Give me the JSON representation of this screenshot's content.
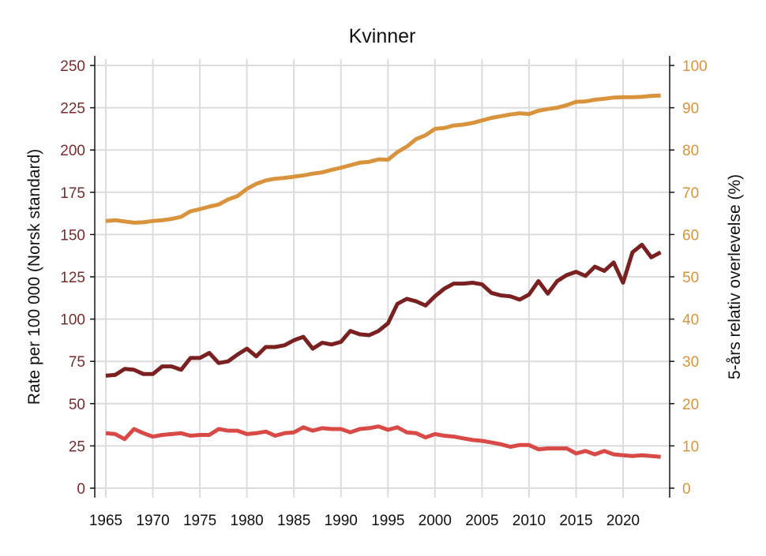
{
  "chart_data": {
    "type": "line",
    "title": "Kvinner",
    "ylabel": "Rate per 100 000 (Norsk standard)",
    "y2label": "5-års relativ overlevelse (%)",
    "xlim": [
      1965,
      2024
    ],
    "ylim": [
      0,
      250
    ],
    "y2lim": [
      0,
      100
    ],
    "grid": true,
    "xticks": [
      1965,
      1970,
      1975,
      1980,
      1985,
      1990,
      1995,
      2000,
      2005,
      2010,
      2015,
      2020
    ],
    "yticks": [
      0,
      25,
      50,
      75,
      100,
      125,
      150,
      175,
      200,
      225,
      250
    ],
    "y2ticks": [
      0,
      10,
      20,
      30,
      40,
      50,
      60,
      70,
      80,
      90,
      100
    ],
    "left_tick_color": "#7b2b2b",
    "right_tick_color": "#d9933d",
    "x": [
      1965,
      1966,
      1967,
      1968,
      1969,
      1970,
      1971,
      1972,
      1973,
      1974,
      1975,
      1976,
      1977,
      1978,
      1979,
      1980,
      1981,
      1982,
      1983,
      1984,
      1985,
      1986,
      1987,
      1988,
      1989,
      1990,
      1991,
      1992,
      1993,
      1994,
      1995,
      1996,
      1997,
      1998,
      1999,
      2000,
      2001,
      2002,
      2003,
      2004,
      2005,
      2006,
      2007,
      2008,
      2009,
      2010,
      2011,
      2012,
      2013,
      2014,
      2015,
      2016,
      2017,
      2018,
      2019,
      2020,
      2021,
      2022,
      2023,
      2024
    ],
    "series": [
      {
        "axis": "right",
        "color": "#d9933d",
        "values": [
          63.2,
          63.4,
          63.1,
          62.8,
          62.9,
          63.2,
          63.4,
          63.7,
          64.2,
          65.5,
          66.0,
          66.6,
          67.1,
          68.3,
          69.1,
          70.8,
          72.0,
          72.8,
          73.2,
          73.4,
          73.7,
          74.0,
          74.4,
          74.7,
          75.3,
          75.8,
          76.4,
          77.0,
          77.2,
          77.8,
          77.7,
          79.5,
          80.8,
          82.6,
          83.5,
          85.0,
          85.2,
          85.8,
          86.0,
          86.4,
          87.0,
          87.6,
          88.0,
          88.4,
          88.7,
          88.5,
          89.3,
          89.7,
          90.0,
          90.6,
          91.4,
          91.5,
          91.9,
          92.1,
          92.4,
          92.5,
          92.5,
          92.6,
          92.8,
          92.9
        ]
      },
      {
        "axis": "left",
        "color": "#7b2020",
        "values": [
          66.5,
          67,
          70.5,
          70,
          67.5,
          67.5,
          72,
          72,
          70,
          77,
          77,
          80,
          74,
          75,
          79,
          82.5,
          78,
          83.5,
          83.5,
          84.5,
          87.5,
          89.5,
          82.5,
          86,
          85,
          86.5,
          93,
          91,
          90.5,
          93,
          97.5,
          109,
          112,
          110.5,
          108,
          113.5,
          118,
          121,
          121,
          121.5,
          120.5,
          115.5,
          114,
          113.5,
          111.5,
          114.5,
          122.5,
          115,
          122.5,
          126,
          128,
          125.5,
          131,
          128.5,
          133.5,
          121.5,
          139.5,
          144,
          136.5,
          139.5
        ]
      },
      {
        "axis": "left",
        "color": "#d94a46",
        "values": [
          32.5,
          32,
          29,
          35,
          32.5,
          30.5,
          31.5,
          32,
          32.5,
          31,
          31.5,
          31.5,
          35,
          34,
          34,
          32,
          32.5,
          33.5,
          31,
          32.5,
          33,
          36,
          34,
          35.5,
          35,
          35,
          33,
          35,
          35.5,
          36.5,
          34.5,
          36,
          33,
          32.5,
          30,
          32,
          31,
          30.5,
          29.5,
          28.5,
          28,
          27,
          26,
          24.5,
          25.5,
          25.5,
          23,
          23.5,
          23.5,
          23.5,
          20.5,
          22,
          20,
          22,
          20,
          19.5,
          19,
          19.5,
          19,
          18.5
        ]
      }
    ]
  }
}
